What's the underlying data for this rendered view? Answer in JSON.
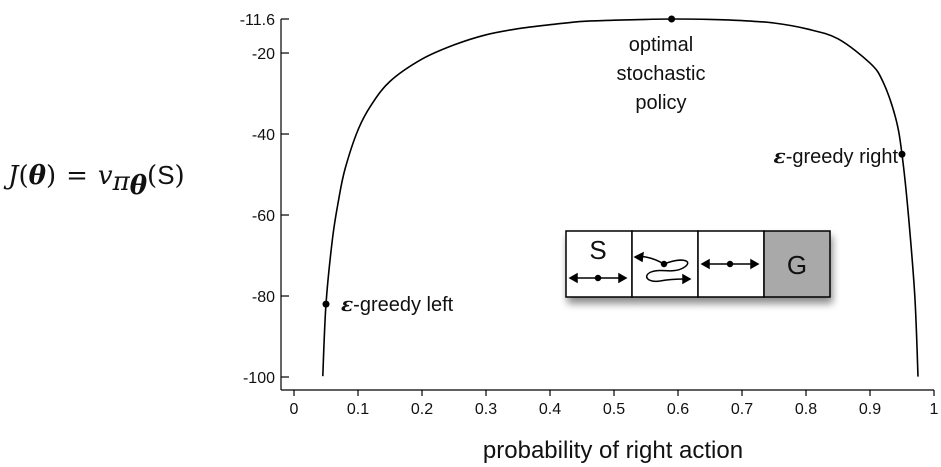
{
  "chart_data": {
    "type": "line",
    "xlabel": "probability of right action",
    "ylabel": {
      "func": "J",
      "theta": "θ",
      "eq": "=",
      "v": "v",
      "pi": "π",
      "arg_open": "(",
      "state": "S",
      "arg_close": ")"
    },
    "xlim": [
      0,
      1
    ],
    "ylim": [
      -100,
      -11.6
    ],
    "x_ticks": [
      "0",
      "0.1",
      "0.2",
      "0.3",
      "0.4",
      "0.5",
      "0.6",
      "0.7",
      "0.8",
      "0.9",
      "1"
    ],
    "y_ticks": [
      "-11.6",
      "-20",
      "-40",
      "-60",
      "-80",
      "-100"
    ],
    "grid": false,
    "series": [
      {
        "x": [
          0.045,
          0.05,
          0.06,
          0.07,
          0.08,
          0.1,
          0.12,
          0.15,
          0.2,
          0.25,
          0.3,
          0.35,
          0.4,
          0.45,
          0.5,
          0.55,
          0.59,
          0.65,
          0.7,
          0.75,
          0.8,
          0.85,
          0.9,
          0.92,
          0.94,
          0.95,
          0.96,
          0.97,
          0.975
        ],
        "y": [
          -99.8,
          -82,
          -66,
          -56,
          -48.5,
          -39,
          -33,
          -27,
          -21.5,
          -18,
          -15.5,
          -14,
          -13,
          -12.2,
          -11.9,
          -11.7,
          -11.6,
          -11.7,
          -12,
          -12.6,
          -14,
          -16.5,
          -22.5,
          -27,
          -36,
          -45,
          -60,
          -80,
          -99.9
        ]
      }
    ],
    "points": [
      {
        "x": 0.59,
        "y": -11.6,
        "label_lines": [
          "optimal",
          "stochastic",
          "policy"
        ]
      },
      {
        "x": 0.95,
        "y": -45,
        "label_prefix": "ε",
        "label_text": "-greedy right"
      },
      {
        "x": 0.05,
        "y": -82,
        "label_prefix": "ε",
        "label_text": "-greedy left"
      }
    ]
  },
  "gridworld": {
    "cells": [
      {
        "label": "S",
        "arrow": "both"
      },
      {
        "label": "",
        "arrow": "reversed"
      },
      {
        "label": "",
        "arrow": "both"
      },
      {
        "label": "G",
        "arrow": "none"
      }
    ],
    "goal_fill": "#a9a9a9"
  },
  "colors": {
    "curve": "#000000",
    "axis": "#000000",
    "text": "#111111"
  }
}
